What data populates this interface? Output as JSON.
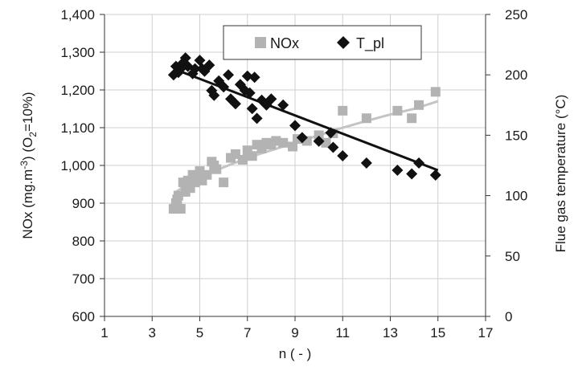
{
  "chart_data": {
    "type": "scatter",
    "title": "",
    "xlabel": "n ( - )",
    "ylabel_left": "NOx (mg.m-3) (O2=10%)",
    "ylabel_left_parts": {
      "a": "NOx (mg.m",
      "sup": "-3",
      "b": ") (O",
      "sub": "2",
      "c": "=10%)"
    },
    "ylabel_right": "Flue gas temperature  (°C)",
    "xlim": [
      1,
      17
    ],
    "ylim_left": [
      600,
      1400
    ],
    "ylim_right": [
      0,
      250
    ],
    "x_ticks": [
      1,
      3,
      5,
      7,
      9,
      11,
      13,
      15,
      17
    ],
    "x_tick_labels": [
      "1",
      "3",
      "5",
      "7",
      "9",
      "11",
      "13",
      "15",
      "17"
    ],
    "y_left_ticks": [
      600,
      700,
      800,
      900,
      1000,
      1100,
      1200,
      1300,
      1400
    ],
    "y_left_tick_labels": [
      "600",
      "700",
      "800",
      "900",
      "1,000",
      "1,100",
      "1,200",
      "1,300",
      "1,400"
    ],
    "y_right_ticks": [
      0,
      50,
      100,
      150,
      200,
      250
    ],
    "y_right_tick_labels": [
      "0",
      "50",
      "100",
      "150",
      "200",
      "250"
    ],
    "grid": true,
    "legend": {
      "placement": "top-center",
      "entries": [
        "NOx",
        "T_pl"
      ]
    },
    "series": [
      {
        "name": "NOx",
        "axis": "left",
        "marker": "square",
        "color": "#b3b3b3",
        "points": [
          [
            3.9,
            885
          ],
          [
            4.0,
            900
          ],
          [
            4.05,
            910
          ],
          [
            4.1,
            920
          ],
          [
            4.2,
            885
          ],
          [
            4.3,
            955
          ],
          [
            4.4,
            930
          ],
          [
            4.5,
            960
          ],
          [
            4.6,
            940
          ],
          [
            4.7,
            975
          ],
          [
            4.8,
            955
          ],
          [
            5.0,
            985
          ],
          [
            5.1,
            960
          ],
          [
            5.3,
            975
          ],
          [
            5.5,
            1010
          ],
          [
            5.6,
            1000
          ],
          [
            5.7,
            990
          ],
          [
            6.0,
            955
          ],
          [
            6.3,
            1020
          ],
          [
            6.5,
            1030
          ],
          [
            6.8,
            1015
          ],
          [
            7.0,
            1040
          ],
          [
            7.2,
            1025
          ],
          [
            7.4,
            1055
          ],
          [
            7.6,
            1045
          ],
          [
            7.8,
            1060
          ],
          [
            8.0,
            1055
          ],
          [
            8.2,
            1065
          ],
          [
            8.5,
            1060
          ],
          [
            8.9,
            1050
          ],
          [
            9.1,
            1070
          ],
          [
            9.5,
            1065
          ],
          [
            10.0,
            1080
          ],
          [
            10.3,
            1060
          ],
          [
            10.6,
            1085
          ],
          [
            11.0,
            1145
          ],
          [
            12.0,
            1125
          ],
          [
            13.3,
            1145
          ],
          [
            13.9,
            1125
          ],
          [
            14.2,
            1160
          ],
          [
            14.9,
            1195
          ]
        ],
        "trend": [
          [
            4.0,
            930
          ],
          [
            5.0,
            970
          ],
          [
            6.0,
            995
          ],
          [
            7.0,
            1020
          ],
          [
            8.0,
            1040
          ],
          [
            9.0,
            1060
          ],
          [
            10.0,
            1080
          ],
          [
            11.0,
            1100
          ],
          [
            12.0,
            1118
          ],
          [
            13.0,
            1135
          ],
          [
            14.0,
            1150
          ],
          [
            15.0,
            1170
          ]
        ]
      },
      {
        "name": "T_pl",
        "axis": "right",
        "marker": "diamond",
        "color": "#111111",
        "points": [
          [
            3.9,
            200
          ],
          [
            4.0,
            207
          ],
          [
            4.1,
            202
          ],
          [
            4.2,
            205
          ],
          [
            4.3,
            210
          ],
          [
            4.4,
            214
          ],
          [
            4.5,
            207
          ],
          [
            4.7,
            201
          ],
          [
            4.8,
            205
          ],
          [
            5.0,
            212
          ],
          [
            5.1,
            205
          ],
          [
            5.2,
            203
          ],
          [
            5.4,
            208
          ],
          [
            5.5,
            187
          ],
          [
            5.6,
            183
          ],
          [
            5.8,
            195
          ],
          [
            6.0,
            190
          ],
          [
            6.2,
            200
          ],
          [
            6.3,
            180
          ],
          [
            6.5,
            176
          ],
          [
            6.7,
            192
          ],
          [
            6.9,
            187
          ],
          [
            7.0,
            199
          ],
          [
            7.1,
            185
          ],
          [
            7.2,
            172
          ],
          [
            7.3,
            198
          ],
          [
            7.4,
            164
          ],
          [
            7.6,
            179
          ],
          [
            7.8,
            175
          ],
          [
            8.0,
            180
          ],
          [
            8.5,
            175
          ],
          [
            9.0,
            158
          ],
          [
            9.3,
            148
          ],
          [
            10.0,
            145
          ],
          [
            10.5,
            152
          ],
          [
            10.6,
            140
          ],
          [
            11.0,
            133
          ],
          [
            12.0,
            127
          ],
          [
            13.3,
            121
          ],
          [
            13.9,
            118
          ],
          [
            14.2,
            127
          ],
          [
            14.9,
            117
          ]
        ],
        "trend": [
          [
            3.9,
            205
          ],
          [
            15.0,
            121
          ]
        ]
      }
    ]
  }
}
